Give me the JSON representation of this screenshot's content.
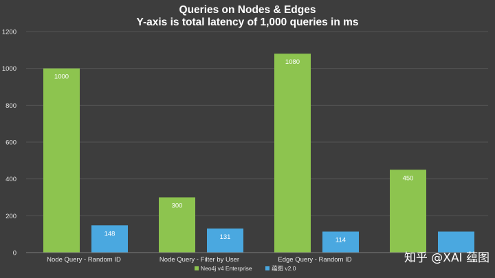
{
  "chart_data": {
    "type": "bar",
    "title": "Queries on Nodes & Edges",
    "subtitle": "Y-axis is total latency of 1,000 queries in ms",
    "categories": [
      "Node Query - Random ID",
      "Node Query - Filter by User",
      "Edge Query - Random ID",
      ""
    ],
    "series": [
      {
        "name": "Neo4j v4 Enterprise",
        "color": "#8dc44f",
        "values": [
          1000,
          300,
          1080,
          450
        ]
      },
      {
        "name": "蕴图 v2.0",
        "color": "#4aa8e0",
        "values": [
          148,
          131,
          114,
          114
        ]
      }
    ],
    "ylim": [
      0,
      1200
    ],
    "yticks": [
      0,
      200,
      400,
      600,
      800,
      1000,
      1200
    ],
    "grid": true,
    "legend": "bottom"
  },
  "watermark": "知乎 @XAI 蕴图"
}
